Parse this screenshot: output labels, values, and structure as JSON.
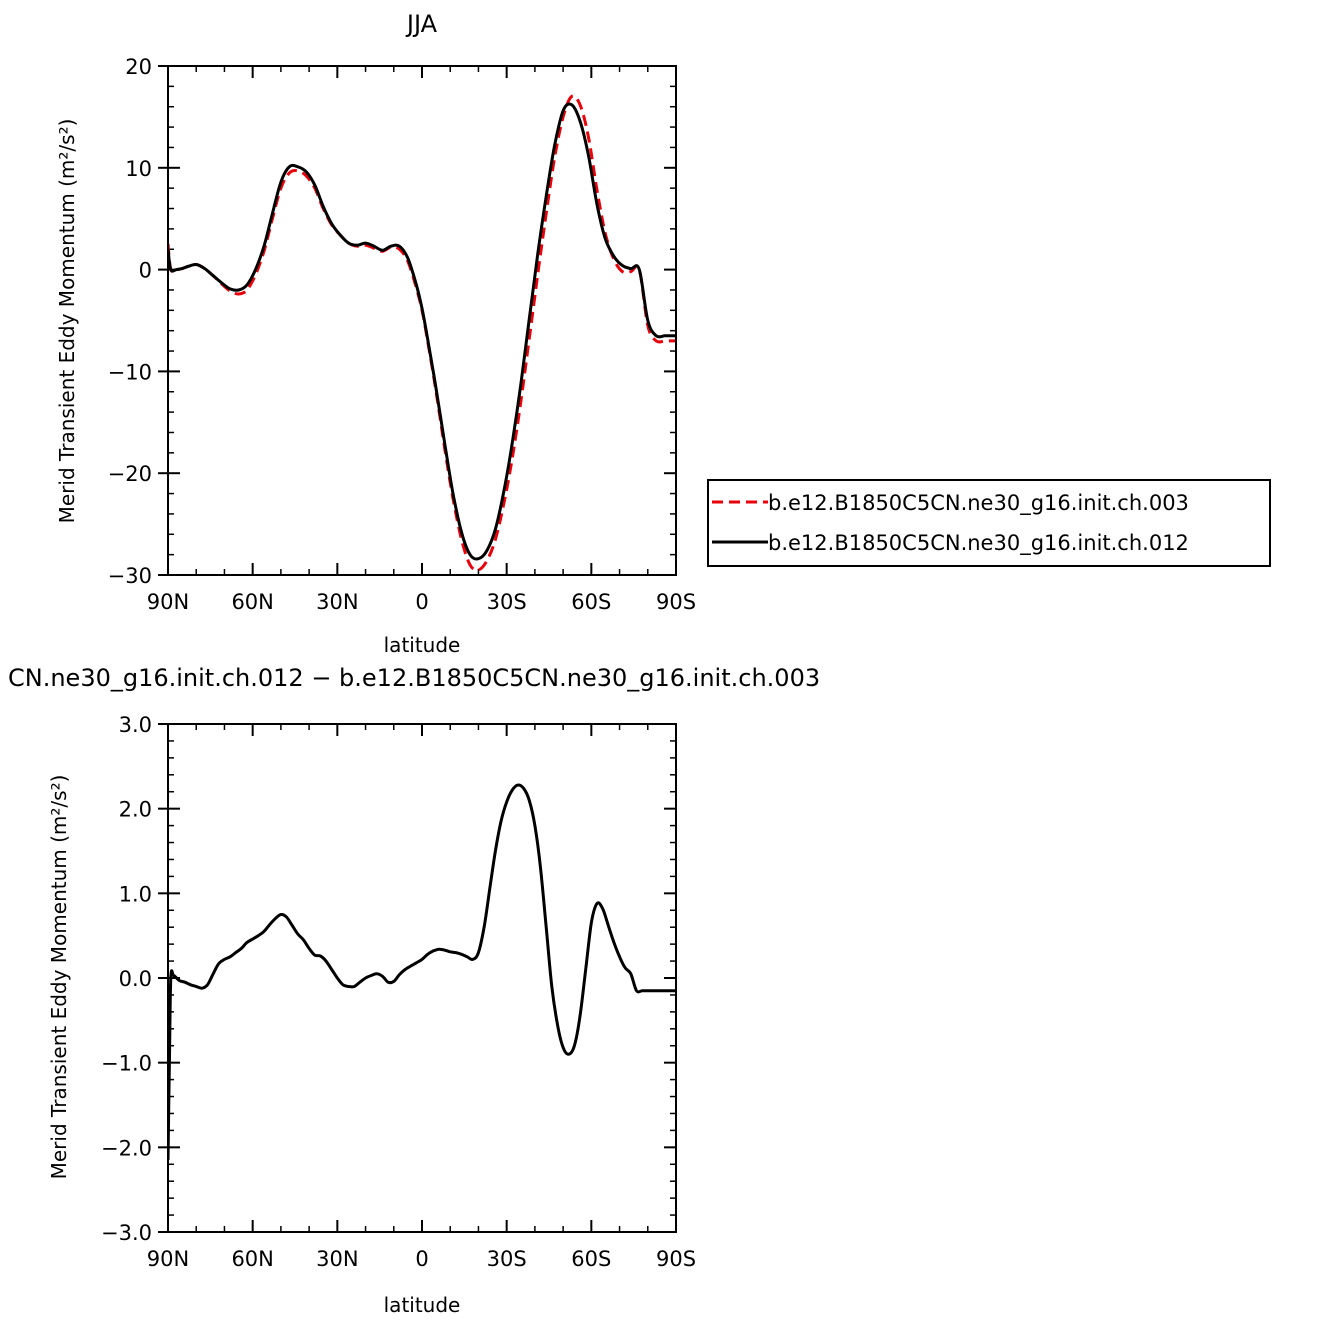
{
  "chart_data": [
    {
      "type": "line",
      "title": "JJA",
      "xlabel": "latitude",
      "ylabel": "Merid Transient Eddy Momentum (m²/s²)",
      "xlim": [
        90,
        -90
      ],
      "ylim": [
        -30,
        20
      ],
      "x_ticks": [
        90,
        60,
        30,
        0,
        -30,
        -60,
        -90
      ],
      "x_tick_labels": [
        "90N",
        "60N",
        "30N",
        "0",
        "30S",
        "60S",
        "90S"
      ],
      "y_ticks": [
        20,
        10,
        0,
        -10,
        -20,
        -30
      ],
      "y_tick_labels": [
        "20",
        "10",
        "0",
        "−10",
        "−20",
        "−30"
      ],
      "legend": {
        "placement": "right-outside"
      },
      "series": [
        {
          "name": "b.e12.B1850C5CN.ne30_g16.init.ch.003",
          "color": "#e8000b",
          "dash": "dashed",
          "x": [
            90,
            89,
            87,
            85,
            83,
            80,
            77,
            74,
            71,
            68,
            65,
            62,
            59,
            56,
            53,
            50,
            47,
            44,
            41,
            38,
            35,
            32,
            29,
            26,
            23,
            20,
            17,
            14,
            11,
            8,
            5,
            2,
            0,
            -2,
            -5,
            -8,
            -11,
            -14,
            -17,
            -20,
            -23,
            -26,
            -29,
            -32,
            -35,
            -38,
            -41,
            -44,
            -47,
            -50,
            -53,
            -56,
            -59,
            -62,
            -65,
            -68,
            -71,
            -74,
            -77,
            -80,
            -83,
            -86,
            -88,
            -90
          ],
          "y": [
            2.5,
            0,
            0,
            0.1,
            0.3,
            0.5,
            0.1,
            -0.6,
            -1.4,
            -2.1,
            -2.4,
            -2.0,
            -0.5,
            1.8,
            5.0,
            8.0,
            9.5,
            9.7,
            9.2,
            8.0,
            6.0,
            4.4,
            3.4,
            2.6,
            2.3,
            2.4,
            2.1,
            1.8,
            2.2,
            2.0,
            0.8,
            -1.8,
            -4.0,
            -7.0,
            -12.0,
            -17.5,
            -22.5,
            -26.5,
            -29.0,
            -29.5,
            -28.6,
            -26.5,
            -23.0,
            -18.5,
            -13.0,
            -6.8,
            -0.5,
            5.5,
            11.0,
            15.0,
            17.0,
            16.2,
            13.0,
            7.8,
            3.5,
            1.0,
            -0.2,
            -0.2,
            0.0,
            -5.5,
            -7.0,
            -7.0,
            -7.0,
            -7.0
          ]
        },
        {
          "name": "b.e12.B1850C5CN.ne30_g16.init.ch.012",
          "color": "#000000",
          "dash": "solid",
          "x": [
            90,
            89,
            87,
            85,
            83,
            80,
            77,
            74,
            71,
            68,
            65,
            62,
            59,
            56,
            53,
            50,
            47,
            44,
            41,
            38,
            35,
            32,
            29,
            26,
            23,
            20,
            17,
            14,
            11,
            8,
            5,
            2,
            0,
            -2,
            -5,
            -8,
            -11,
            -14,
            -17,
            -20,
            -23,
            -26,
            -29,
            -32,
            -35,
            -38,
            -41,
            -44,
            -47,
            -50,
            -53,
            -56,
            -59,
            -62,
            -65,
            -68,
            -71,
            -74,
            -77,
            -80,
            -83,
            -86,
            -88,
            -90
          ],
          "y": [
            2.0,
            0,
            0,
            0.1,
            0.3,
            0.5,
            0.1,
            -0.6,
            -1.3,
            -1.9,
            -2.0,
            -1.5,
            0.0,
            2.3,
            5.5,
            8.6,
            10.1,
            10.1,
            9.6,
            8.3,
            6.2,
            4.5,
            3.4,
            2.6,
            2.4,
            2.6,
            2.3,
            1.9,
            2.3,
            2.3,
            1.1,
            -1.5,
            -3.8,
            -6.8,
            -11.7,
            -17.0,
            -22.0,
            -25.8,
            -28.0,
            -28.4,
            -27.6,
            -25.5,
            -21.8,
            -17.0,
            -11.3,
            -4.9,
            1.5,
            7.2,
            12.2,
            15.6,
            16.2,
            14.6,
            11.2,
            6.4,
            3.0,
            1.3,
            0.4,
            0.1,
            0.0,
            -5.0,
            -6.5,
            -6.5,
            -6.5,
            -6.5
          ]
        }
      ]
    },
    {
      "type": "line",
      "title": "CN.ne30_g16.init.ch.012 − b.e12.B1850C5CN.ne30_g16.init.ch.003",
      "xlabel": "latitude",
      "ylabel": "Merid Transient Eddy Momentum (m²/s²)",
      "xlim": [
        90,
        -90
      ],
      "ylim": [
        -3.0,
        3.0
      ],
      "x_ticks": [
        90,
        60,
        30,
        0,
        -30,
        -60,
        -90
      ],
      "x_tick_labels": [
        "90N",
        "60N",
        "30N",
        "0",
        "30S",
        "60S",
        "90S"
      ],
      "y_ticks": [
        3,
        2,
        1,
        0,
        -1,
        -2,
        -3
      ],
      "y_tick_labels": [
        "3.0",
        "2.0",
        "1.0",
        "0.0",
        "−1.0",
        "−2.0",
        "−3.0"
      ],
      "series": [
        {
          "color": "#000000",
          "dash": "solid",
          "x": [
            90,
            89.5,
            89,
            88,
            86,
            84,
            82,
            80,
            78,
            76,
            74,
            72,
            70,
            68,
            66,
            64,
            62,
            60,
            58,
            56,
            54,
            52,
            50,
            48,
            46,
            44,
            42,
            40,
            38,
            36,
            34,
            32,
            30,
            28,
            26,
            24,
            22,
            20,
            18,
            16,
            14,
            12,
            10,
            8,
            6,
            4,
            2,
            0,
            -2,
            -4,
            -6,
            -8,
            -10,
            -12,
            -14,
            -16,
            -18,
            -20,
            -22,
            -24,
            -26,
            -28,
            -30,
            -32,
            -34,
            -36,
            -38,
            -40,
            -42,
            -44,
            -46,
            -48,
            -50,
            -52,
            -54,
            -56,
            -58,
            -60,
            -62,
            -64,
            -66,
            -68,
            -70,
            -72,
            -74,
            -76,
            -78,
            -80,
            -82,
            -84,
            -86,
            -88,
            -90
          ],
          "y": [
            -2.15,
            -1.0,
            0.0,
            0.03,
            -0.03,
            -0.05,
            -0.08,
            -0.1,
            -0.12,
            -0.08,
            0.05,
            0.17,
            0.22,
            0.25,
            0.3,
            0.35,
            0.42,
            0.46,
            0.5,
            0.55,
            0.63,
            0.7,
            0.75,
            0.72,
            0.62,
            0.52,
            0.45,
            0.35,
            0.27,
            0.26,
            0.2,
            0.1,
            0.0,
            -0.08,
            -0.1,
            -0.1,
            -0.05,
            0.0,
            0.03,
            0.05,
            0.02,
            -0.05,
            -0.04,
            0.04,
            0.1,
            0.14,
            0.18,
            0.22,
            0.28,
            0.32,
            0.34,
            0.33,
            0.31,
            0.3,
            0.28,
            0.25,
            0.22,
            0.3,
            0.6,
            1.05,
            1.5,
            1.85,
            2.08,
            2.22,
            2.28,
            2.24,
            2.1,
            1.8,
            1.3,
            0.6,
            -0.1,
            -0.55,
            -0.82,
            -0.9,
            -0.8,
            -0.45,
            0.1,
            0.65,
            0.88,
            0.82,
            0.62,
            0.42,
            0.25,
            0.12,
            0.05,
            -0.15,
            -0.15,
            -0.15,
            -0.15,
            -0.15,
            -0.15,
            -0.15,
            -0.15
          ]
        }
      ]
    }
  ]
}
